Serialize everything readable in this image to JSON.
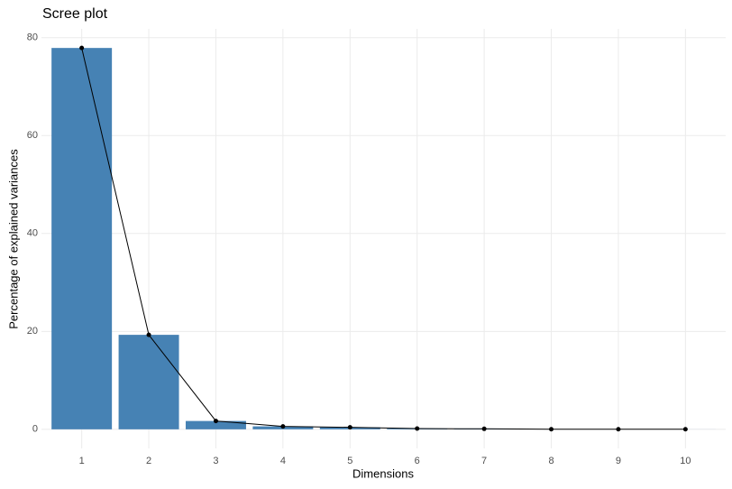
{
  "chart_data": {
    "type": "bar-line",
    "title": "Scree plot",
    "x_label": "Dimensions",
    "y_label": "Percentage of explained variances",
    "categories": [
      "1",
      "2",
      "3",
      "4",
      "5",
      "6",
      "7",
      "8",
      "9",
      "10"
    ],
    "values": [
      77.9,
      19.3,
      1.7,
      0.6,
      0.4,
      0.15,
      0.1,
      0.02,
      0.01,
      0.01
    ],
    "color": "#4682b4",
    "line_color": "#000000",
    "ylim": [
      -3.9,
      81.8
    ],
    "yticks": [
      0,
      20,
      40,
      60,
      80
    ],
    "grid": true
  }
}
